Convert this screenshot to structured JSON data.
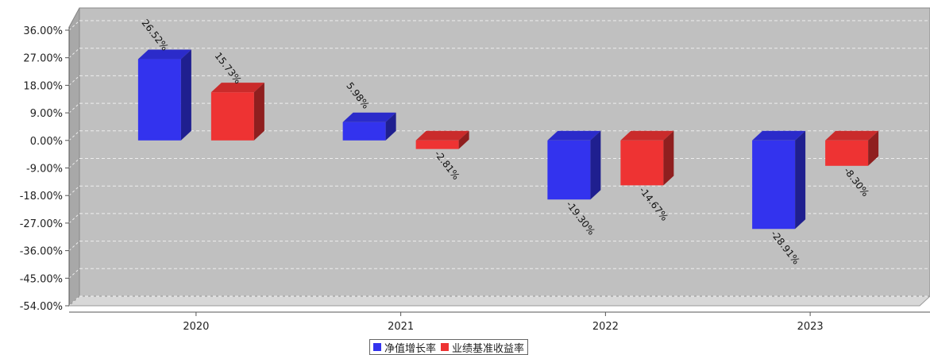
{
  "chart_data": {
    "type": "bar",
    "categories": [
      "2020",
      "2021",
      "2022",
      "2023"
    ],
    "series": [
      {
        "name": "净值增长率",
        "values": [
          26.52,
          5.98,
          -19.3,
          -28.91
        ],
        "labels": [
          "26.52%",
          "5.98%",
          "-19.30%",
          "-28.91%"
        ],
        "color": "#3333ee"
      },
      {
        "name": "业绩基准收益率",
        "values": [
          15.73,
          -2.81,
          -14.67,
          -8.3
        ],
        "labels": [
          "15.73%",
          "-2.81%",
          "-14.67%",
          "-8.30%"
        ],
        "color": "#ee3333"
      }
    ],
    "yticks": [
      36,
      27,
      18,
      9,
      0,
      -9,
      -18,
      -27,
      -36,
      -45,
      -54
    ],
    "ytick_labels": [
      "36.00%",
      "27.00%",
      "18.00%",
      "9.00%",
      "0.00%",
      "-9.00%",
      "-18.00%",
      "-27.00%",
      "-36.00%",
      "-45.00%",
      "-54.00%"
    ],
    "ylim": [
      -54,
      36
    ],
    "grid": true,
    "legend_position": "bottom-center",
    "style": "3d"
  }
}
